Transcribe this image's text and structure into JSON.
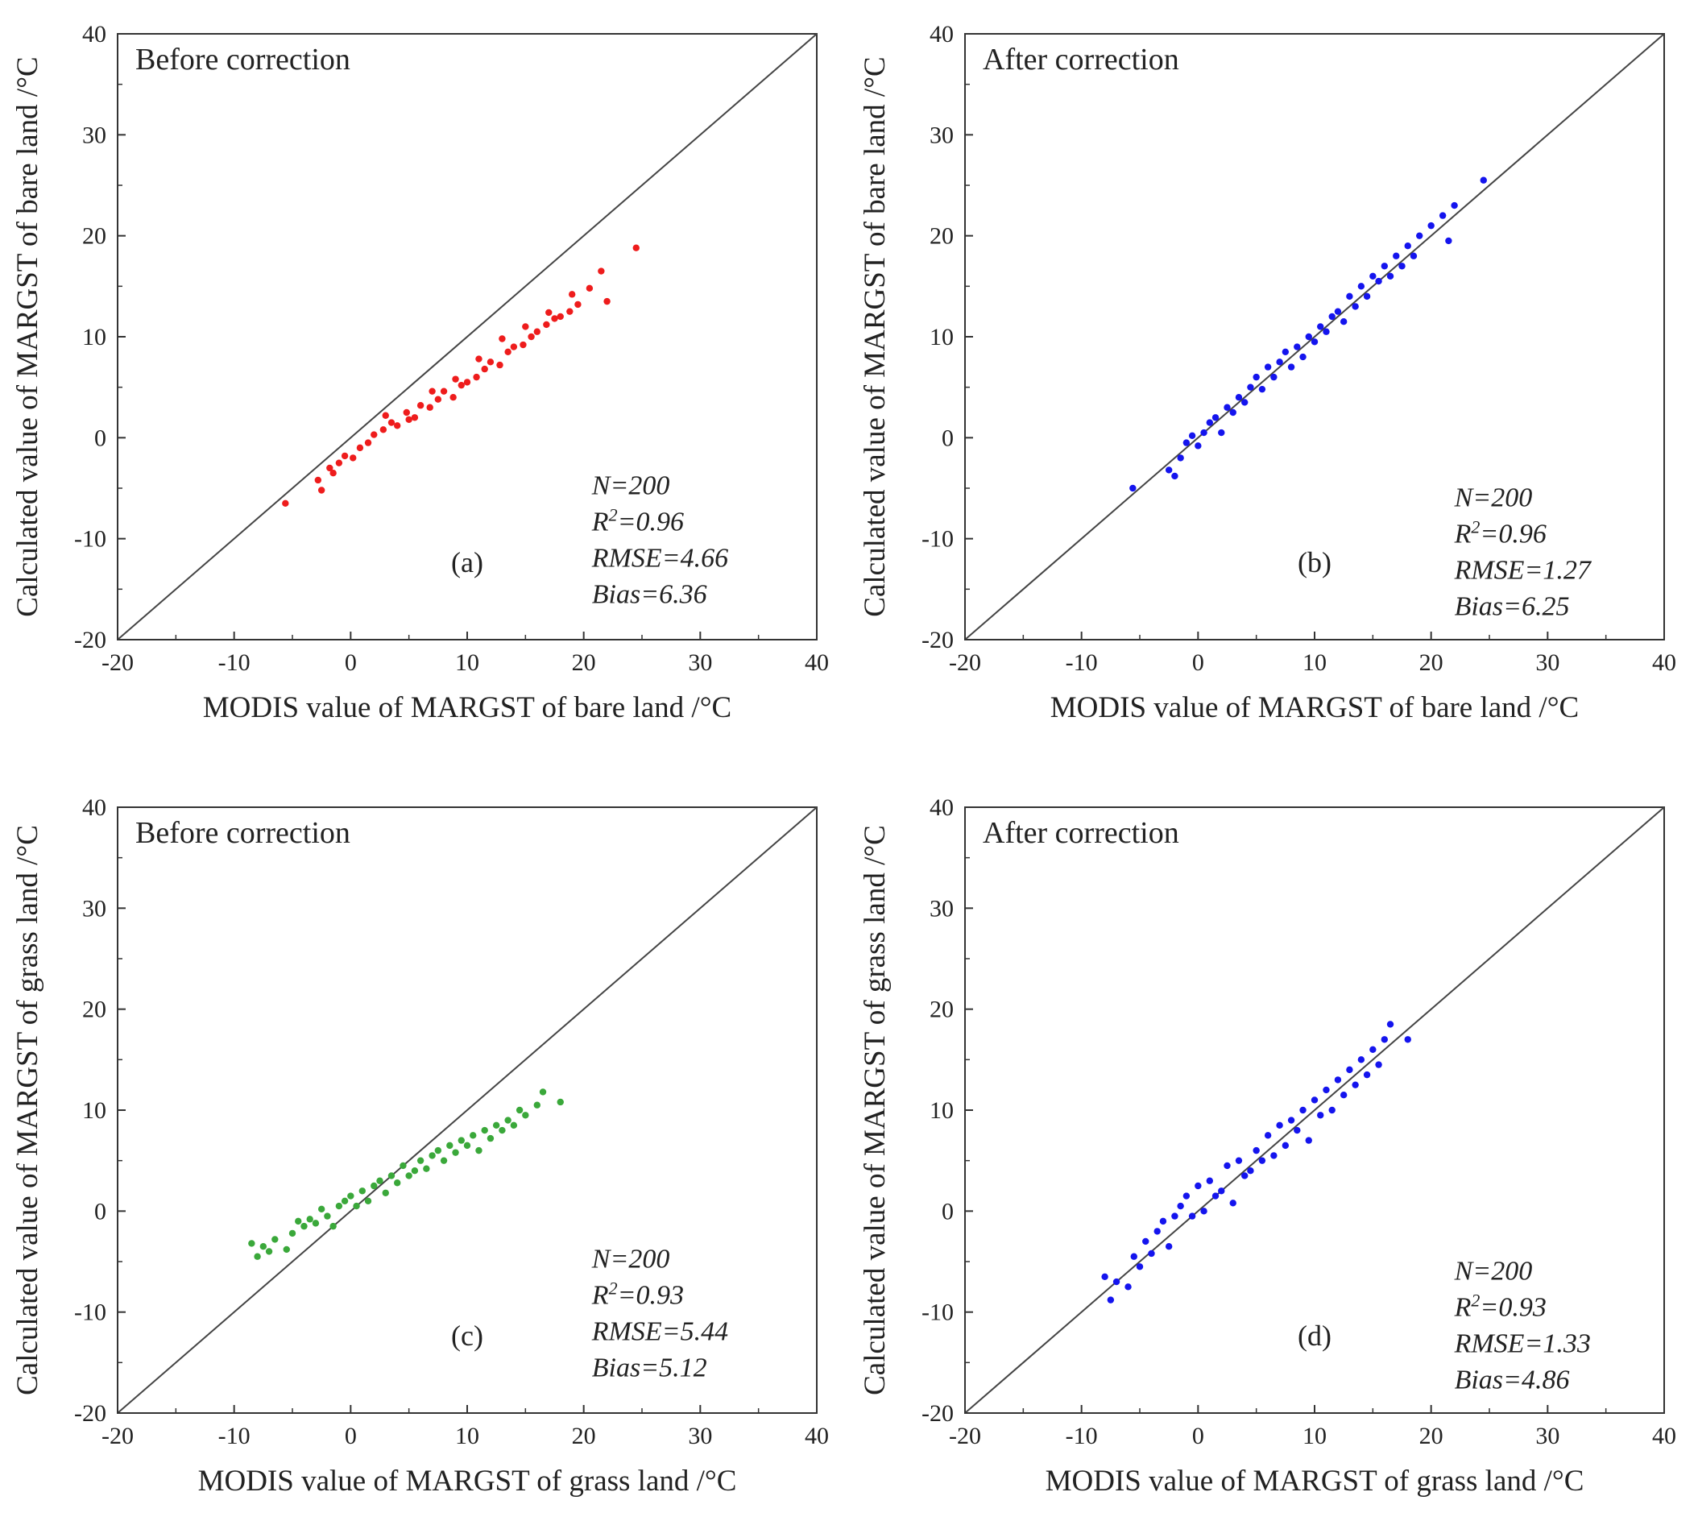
{
  "chart_data": [
    {
      "type": "scatter",
      "panel": "(a)",
      "title": "Before correction",
      "xlabel": "MODIS value of MARGST of bare land /°C",
      "ylabel": "Calculated value of MARGST of bare land /°C",
      "xlim": [
        -20,
        40
      ],
      "ylim": [
        -20,
        40
      ],
      "x_ticks": [
        "-20",
        "-10",
        "0",
        "10",
        "20",
        "30",
        "40"
      ],
      "y_ticks": [
        "-20",
        "-10",
        "0",
        "10",
        "20",
        "30",
        "40"
      ],
      "reference_line": "1:1",
      "color": "#ee1c1c",
      "stats": [
        "N=200",
        "R2=0.96",
        "RMSE=4.66",
        "Bias=6.36"
      ],
      "series": [
        {
          "name": "points",
          "x": [
            -5.6,
            -2.8,
            -2.5,
            -1.8,
            -1.5,
            -1.0,
            -0.5,
            0.2,
            0.8,
            1.5,
            2.0,
            2.8,
            3.5,
            4.0,
            4.8,
            5.5,
            6.0,
            6.8,
            7.5,
            8.0,
            8.8,
            9.5,
            10.0,
            10.8,
            11.5,
            12.0,
            12.8,
            13.5,
            14.0,
            14.8,
            15.5,
            16.0,
            16.8,
            17.5,
            18.0,
            18.8,
            19.5,
            20.5,
            21.5,
            22.0,
            24.5,
            3.0,
            5.0,
            7.0,
            9.0,
            11.0,
            13.0,
            15.0,
            17.0,
            19.0
          ],
          "y": [
            -6.5,
            -4.2,
            -5.2,
            -3.0,
            -3.5,
            -2.5,
            -1.8,
            -2.0,
            -1.0,
            -0.5,
            0.3,
            0.8,
            1.5,
            1.2,
            2.5,
            2.0,
            3.2,
            3.0,
            3.8,
            4.6,
            4.0,
            5.2,
            5.5,
            6.0,
            6.8,
            7.5,
            7.2,
            8.5,
            9.0,
            9.2,
            10.0,
            10.5,
            11.2,
            11.8,
            12.0,
            12.5,
            13.2,
            14.8,
            16.5,
            13.5,
            18.8,
            2.2,
            1.8,
            4.6,
            5.8,
            7.8,
            9.8,
            11.0,
            12.4,
            14.2
          ]
        }
      ]
    },
    {
      "type": "scatter",
      "panel": "(b)",
      "title": "After correction",
      "xlabel": "MODIS value of MARGST of bare land /°C",
      "ylabel": "Calculated value of MARGST of bare land /°C",
      "xlim": [
        -20,
        40
      ],
      "ylim": [
        -20,
        40
      ],
      "x_ticks": [
        "-20",
        "-10",
        "0",
        "10",
        "20",
        "30",
        "40"
      ],
      "y_ticks": [
        "-20",
        "-10",
        "0",
        "10",
        "20",
        "30",
        "40"
      ],
      "reference_line": "1:1",
      "color": "#1414ee",
      "stats": [
        "N=200",
        "R2=0.96",
        "RMSE=1.27",
        "Bias=6.25"
      ],
      "series": [
        {
          "name": "points",
          "x": [
            -5.6,
            -2.5,
            -2.0,
            -1.5,
            -1.0,
            -0.5,
            0.0,
            0.5,
            1.0,
            1.5,
            2.0,
            2.5,
            3.0,
            3.5,
            4.0,
            4.5,
            5.0,
            5.5,
            6.0,
            6.5,
            7.0,
            7.5,
            8.0,
            8.5,
            9.0,
            9.5,
            10.0,
            10.5,
            11.0,
            11.5,
            12.0,
            12.5,
            13.0,
            13.5,
            14.0,
            14.5,
            15.0,
            15.5,
            16.0,
            16.5,
            17.0,
            17.5,
            18.0,
            18.5,
            19.0,
            20.0,
            21.0,
            21.5,
            22.0,
            24.5
          ],
          "y": [
            -5.0,
            -3.2,
            -3.8,
            -2.0,
            -0.5,
            0.2,
            -0.8,
            0.5,
            1.5,
            2.0,
            0.5,
            3.0,
            2.5,
            4.0,
            3.5,
            5.0,
            6.0,
            4.8,
            7.0,
            6.0,
            7.5,
            8.5,
            7.0,
            9.0,
            8.0,
            10.0,
            9.5,
            11.0,
            10.5,
            12.0,
            12.5,
            11.5,
            14.0,
            13.0,
            15.0,
            14.0,
            16.0,
            15.5,
            17.0,
            16.0,
            18.0,
            17.0,
            19.0,
            18.0,
            20.0,
            21.0,
            22.0,
            19.5,
            23.0,
            25.5
          ]
        }
      ]
    },
    {
      "type": "scatter",
      "panel": "(c)",
      "title": "Before correction",
      "xlabel": "MODIS value of MARGST of grass land /°C",
      "ylabel": "Calculated value of MARGST of grass land /°C",
      "xlim": [
        -20,
        40
      ],
      "ylim": [
        -20,
        40
      ],
      "x_ticks": [
        "-20",
        "-10",
        "0",
        "10",
        "20",
        "30",
        "40"
      ],
      "y_ticks": [
        "-20",
        "-10",
        "0",
        "10",
        "20",
        "30",
        "40"
      ],
      "reference_line": "1:1",
      "color": "#3aa83a",
      "stats": [
        "N=200",
        "R2=0.93",
        "RMSE=5.44",
        "Bias=5.12"
      ],
      "series": [
        {
          "name": "points",
          "x": [
            -8.5,
            -8.0,
            -7.5,
            -7.0,
            -6.5,
            -5.5,
            -5.0,
            -4.5,
            -4.0,
            -3.5,
            -3.0,
            -2.5,
            -2.0,
            -1.5,
            -1.0,
            -0.5,
            0.0,
            0.5,
            1.0,
            1.5,
            2.0,
            2.5,
            3.0,
            3.5,
            4.0,
            4.5,
            5.0,
            5.5,
            6.0,
            6.5,
            7.0,
            7.5,
            8.0,
            8.5,
            9.0,
            9.5,
            10.0,
            10.5,
            11.0,
            11.5,
            12.0,
            12.5,
            13.0,
            13.5,
            14.0,
            14.5,
            15.0,
            16.0,
            16.5,
            18.0
          ],
          "y": [
            -3.2,
            -4.5,
            -3.5,
            -4.0,
            -2.8,
            -3.8,
            -2.2,
            -1.0,
            -1.5,
            -0.8,
            -1.2,
            0.2,
            -0.5,
            -1.5,
            0.5,
            1.0,
            1.5,
            0.5,
            2.0,
            1.0,
            2.5,
            3.0,
            1.8,
            3.5,
            2.8,
            4.5,
            3.5,
            4.0,
            5.0,
            4.2,
            5.5,
            6.0,
            5.0,
            6.5,
            5.8,
            7.0,
            6.5,
            7.5,
            6.0,
            8.0,
            7.2,
            8.5,
            8.0,
            9.0,
            8.5,
            10.0,
            9.5,
            10.5,
            11.8,
            10.8
          ]
        }
      ]
    },
    {
      "type": "scatter",
      "panel": "(d)",
      "title": "After correction",
      "xlabel": "MODIS value of MARGST of grass land /°C",
      "ylabel": "Calculated value of MARGST of grass land /°C",
      "xlim": [
        -20,
        40
      ],
      "ylim": [
        -20,
        40
      ],
      "x_ticks": [
        "-20",
        "-10",
        "0",
        "10",
        "20",
        "30",
        "40"
      ],
      "y_ticks": [
        "-20",
        "-10",
        "0",
        "10",
        "20",
        "30",
        "40"
      ],
      "reference_line": "1:1",
      "color": "#1414ee",
      "stats": [
        "N=200",
        "R2=0.93",
        "RMSE=1.33",
        "Bias=4.86"
      ],
      "series": [
        {
          "name": "points",
          "x": [
            -8.0,
            -7.5,
            -7.0,
            -6.0,
            -5.5,
            -5.0,
            -4.5,
            -4.0,
            -3.5,
            -3.0,
            -2.5,
            -2.0,
            -1.5,
            -1.0,
            -0.5,
            0.0,
            0.5,
            1.0,
            1.5,
            2.0,
            2.5,
            3.0,
            3.5,
            4.0,
            4.5,
            5.0,
            5.5,
            6.0,
            6.5,
            7.0,
            7.5,
            8.0,
            8.5,
            9.0,
            9.5,
            10.0,
            10.5,
            11.0,
            11.5,
            12.0,
            12.5,
            13.0,
            13.5,
            14.0,
            14.5,
            15.0,
            15.5,
            16.0,
            16.5,
            18.0
          ],
          "y": [
            -6.5,
            -8.8,
            -7.0,
            -7.5,
            -4.5,
            -5.5,
            -3.0,
            -4.2,
            -2.0,
            -1.0,
            -3.5,
            -0.5,
            0.5,
            1.5,
            -0.5,
            2.5,
            0.0,
            3.0,
            1.5,
            2.0,
            4.5,
            0.8,
            5.0,
            3.5,
            4.0,
            6.0,
            5.0,
            7.5,
            5.5,
            8.5,
            6.5,
            9.0,
            8.0,
            10.0,
            7.0,
            11.0,
            9.5,
            12.0,
            10.0,
            13.0,
            11.5,
            14.0,
            12.5,
            15.0,
            13.5,
            16.0,
            14.5,
            17.0,
            18.5,
            17.0
          ]
        }
      ]
    }
  ]
}
